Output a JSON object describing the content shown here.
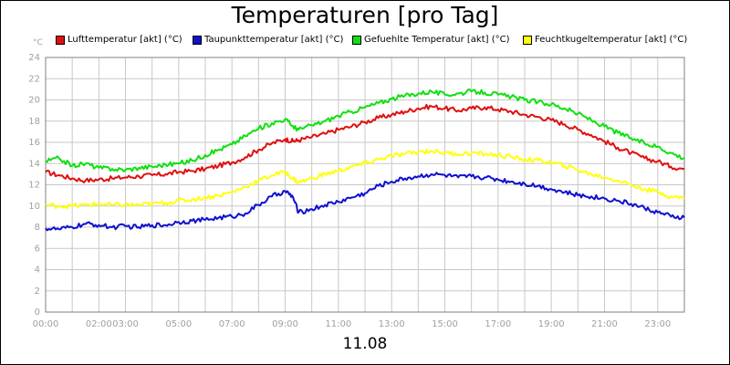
{
  "chart_data": {
    "type": "line",
    "title": "Temperaturen [pro Tag]",
    "date_label": "11.08",
    "yunit": "°C",
    "ylim": [
      0,
      24
    ],
    "yticks": [
      0,
      2,
      4,
      6,
      8,
      10,
      12,
      14,
      16,
      18,
      20,
      22,
      24
    ],
    "xlim": [
      0,
      24
    ],
    "xtick_hours": [
      0,
      2,
      3,
      5,
      7,
      9,
      11,
      13,
      15,
      17,
      19,
      21,
      23
    ],
    "xtick_labels": [
      "00:00",
      "02:00",
      "03:00",
      "05:00",
      "07:00",
      "09:00",
      "11:00",
      "13:00",
      "15:00",
      "17:00",
      "19:00",
      "21:00",
      "23:00"
    ],
    "grid": true,
    "legend_position": "top",
    "series": [
      {
        "name": "Lufttemperatur [akt] (°C)",
        "color": "#e01010",
        "points": [
          [
            0,
            13.2
          ],
          [
            0.5,
            12.9
          ],
          [
            1,
            12.6
          ],
          [
            1.5,
            12.4
          ],
          [
            2,
            12.5
          ],
          [
            2.5,
            12.6
          ],
          [
            3,
            12.7
          ],
          [
            3.5,
            12.8
          ],
          [
            4,
            12.9
          ],
          [
            4.5,
            13.0
          ],
          [
            5,
            13.2
          ],
          [
            5.5,
            13.3
          ],
          [
            6,
            13.5
          ],
          [
            6.5,
            13.8
          ],
          [
            7,
            14.1
          ],
          [
            7.5,
            14.6
          ],
          [
            8,
            15.3
          ],
          [
            8.5,
            15.9
          ],
          [
            9,
            16.3
          ],
          [
            9.3,
            16.1
          ],
          [
            9.5,
            16.2
          ],
          [
            10,
            16.5
          ],
          [
            10.5,
            16.8
          ],
          [
            11,
            17.2
          ],
          [
            11.5,
            17.5
          ],
          [
            12,
            17.9
          ],
          [
            12.5,
            18.3
          ],
          [
            13,
            18.6
          ],
          [
            13.5,
            18.9
          ],
          [
            14,
            19.2
          ],
          [
            14.5,
            19.4
          ],
          [
            15,
            19.2
          ],
          [
            15.5,
            19.0
          ],
          [
            16,
            19.2
          ],
          [
            16.5,
            19.3
          ],
          [
            17,
            19.1
          ],
          [
            17.5,
            18.9
          ],
          [
            18,
            18.6
          ],
          [
            18.5,
            18.4
          ],
          [
            19,
            18.1
          ],
          [
            19.5,
            17.7
          ],
          [
            20,
            17.2
          ],
          [
            20.5,
            16.7
          ],
          [
            21,
            16.1
          ],
          [
            21.5,
            15.5
          ],
          [
            22,
            15.0
          ],
          [
            22.5,
            14.5
          ],
          [
            23,
            14.2
          ],
          [
            23.5,
            13.7
          ],
          [
            24,
            13.5
          ]
        ]
      },
      {
        "name": "Taupunkttemperatur [akt] (°C)",
        "color": "#1010d0",
        "points": [
          [
            0,
            7.9
          ],
          [
            0.5,
            7.8
          ],
          [
            1,
            8.0
          ],
          [
            1.5,
            8.3
          ],
          [
            2,
            8.2
          ],
          [
            2.5,
            8.0
          ],
          [
            3,
            8.1
          ],
          [
            3.5,
            8.0
          ],
          [
            4,
            8.2
          ],
          [
            4.5,
            8.2
          ],
          [
            5,
            8.5
          ],
          [
            5.5,
            8.6
          ],
          [
            6,
            8.7
          ],
          [
            6.5,
            8.9
          ],
          [
            7,
            9.0
          ],
          [
            7.5,
            9.3
          ],
          [
            8,
            10.1
          ],
          [
            8.5,
            10.9
          ],
          [
            9,
            11.4
          ],
          [
            9.3,
            10.8
          ],
          [
            9.5,
            9.4
          ],
          [
            10,
            9.7
          ],
          [
            10.5,
            10.1
          ],
          [
            11,
            10.4
          ],
          [
            11.5,
            10.8
          ],
          [
            12,
            11.2
          ],
          [
            12.5,
            11.9
          ],
          [
            13,
            12.3
          ],
          [
            13.5,
            12.6
          ],
          [
            14,
            12.8
          ],
          [
            14.5,
            13.0
          ],
          [
            15,
            12.9
          ],
          [
            15.5,
            12.7
          ],
          [
            16,
            12.8
          ],
          [
            16.5,
            12.7
          ],
          [
            17,
            12.5
          ],
          [
            17.5,
            12.3
          ],
          [
            18,
            12.1
          ],
          [
            18.5,
            11.9
          ],
          [
            19,
            11.6
          ],
          [
            19.5,
            11.3
          ],
          [
            20,
            11.0
          ],
          [
            20.5,
            10.9
          ],
          [
            21,
            10.7
          ],
          [
            21.5,
            10.5
          ],
          [
            22,
            10.2
          ],
          [
            22.5,
            9.8
          ],
          [
            23,
            9.4
          ],
          [
            23.5,
            9.0
          ],
          [
            24,
            8.9
          ]
        ]
      },
      {
        "name": "Gefuehlte Temperatur [akt] (°C)",
        "color": "#10e010",
        "points": [
          [
            0,
            14.2
          ],
          [
            0.5,
            14.5
          ],
          [
            1,
            13.8
          ],
          [
            1.5,
            14.0
          ],
          [
            2,
            13.6
          ],
          [
            2.5,
            13.5
          ],
          [
            3,
            13.4
          ],
          [
            3.5,
            13.6
          ],
          [
            4,
            13.7
          ],
          [
            4.5,
            13.9
          ],
          [
            5,
            14.0
          ],
          [
            5.5,
            14.3
          ],
          [
            6,
            14.8
          ],
          [
            6.5,
            15.3
          ],
          [
            7,
            15.8
          ],
          [
            7.5,
            16.6
          ],
          [
            8,
            17.3
          ],
          [
            8.5,
            17.8
          ],
          [
            9,
            18.2
          ],
          [
            9.3,
            17.5
          ],
          [
            9.5,
            17.2
          ],
          [
            10,
            17.6
          ],
          [
            10.5,
            18.0
          ],
          [
            11,
            18.5
          ],
          [
            11.5,
            18.9
          ],
          [
            12,
            19.3
          ],
          [
            12.5,
            19.7
          ],
          [
            13,
            20.1
          ],
          [
            13.5,
            20.4
          ],
          [
            14,
            20.6
          ],
          [
            14.5,
            20.8
          ],
          [
            15,
            20.5
          ],
          [
            15.5,
            20.6
          ],
          [
            16,
            20.8
          ],
          [
            16.5,
            20.7
          ],
          [
            17,
            20.5
          ],
          [
            17.5,
            20.3
          ],
          [
            18,
            20.0
          ],
          [
            18.5,
            19.8
          ],
          [
            19,
            19.6
          ],
          [
            19.5,
            19.2
          ],
          [
            20,
            18.7
          ],
          [
            20.5,
            18.1
          ],
          [
            21,
            17.5
          ],
          [
            21.5,
            16.9
          ],
          [
            22,
            16.4
          ],
          [
            22.5,
            15.9
          ],
          [
            23,
            15.6
          ],
          [
            23.5,
            15.0
          ],
          [
            24,
            14.5
          ]
        ]
      },
      {
        "name": "Feuchtkugeltemperatur [akt] (°C)",
        "color": "#ffff10",
        "points": [
          [
            0,
            10.1
          ],
          [
            0.5,
            10.0
          ],
          [
            1,
            10.0
          ],
          [
            1.5,
            10.1
          ],
          [
            2,
            10.2
          ],
          [
            2.5,
            10.1
          ],
          [
            3,
            10.1
          ],
          [
            3.5,
            10.1
          ],
          [
            4,
            10.2
          ],
          [
            4.5,
            10.3
          ],
          [
            5,
            10.5
          ],
          [
            5.5,
            10.6
          ],
          [
            6,
            10.8
          ],
          [
            6.5,
            11.0
          ],
          [
            7,
            11.3
          ],
          [
            7.5,
            11.8
          ],
          [
            8,
            12.4
          ],
          [
            8.5,
            12.9
          ],
          [
            9,
            13.2
          ],
          [
            9.3,
            12.6
          ],
          [
            9.5,
            12.2
          ],
          [
            10,
            12.6
          ],
          [
            10.5,
            13.0
          ],
          [
            11,
            13.3
          ],
          [
            11.5,
            13.7
          ],
          [
            12,
            14.0
          ],
          [
            12.5,
            14.4
          ],
          [
            13,
            14.7
          ],
          [
            13.5,
            14.9
          ],
          [
            14,
            15.1
          ],
          [
            14.5,
            15.2
          ],
          [
            15,
            15.0
          ],
          [
            15.5,
            14.9
          ],
          [
            16,
            15.0
          ],
          [
            16.5,
            14.9
          ],
          [
            17,
            14.8
          ],
          [
            17.5,
            14.6
          ],
          [
            18,
            14.4
          ],
          [
            18.5,
            14.3
          ],
          [
            19,
            14.1
          ],
          [
            19.5,
            13.8
          ],
          [
            20,
            13.4
          ],
          [
            20.5,
            13.0
          ],
          [
            21,
            12.7
          ],
          [
            21.5,
            12.4
          ],
          [
            22,
            12.0
          ],
          [
            22.5,
            11.6
          ],
          [
            23,
            11.3
          ],
          [
            23.5,
            10.9
          ],
          [
            24,
            10.7
          ]
        ]
      }
    ]
  }
}
